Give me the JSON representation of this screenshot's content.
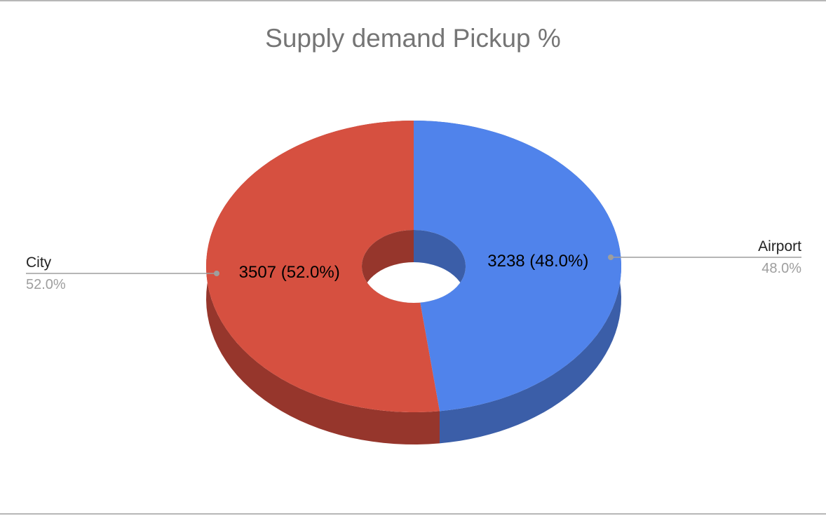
{
  "chart_data": {
    "type": "pie",
    "style": "3d-donut",
    "title": "Supply demand Pickup %",
    "slices": [
      {
        "name": "Airport",
        "value": 3238,
        "label": "3238 (48.0%)",
        "percent_label": "48.0%",
        "color": "#5083eb",
        "side_color": "#3b5ea8"
      },
      {
        "name": "City",
        "value": 3507,
        "label": "3507 (52.0%)",
        "percent_label": "52.0%",
        "color": "#d65040",
        "side_color": "#96362c"
      }
    ],
    "legend": "external-labels"
  }
}
